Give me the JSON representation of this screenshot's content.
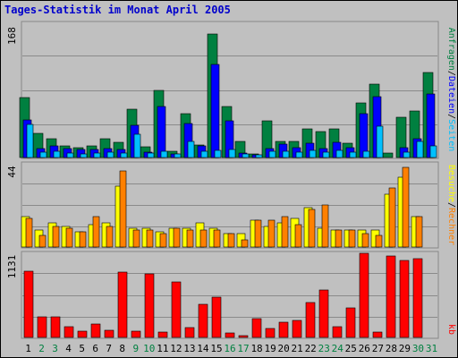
{
  "title": "Tages-Statistik im Monat April 2005",
  "colors": {
    "background": "#c0c0c0",
    "title": "#0000cc",
    "anfragen": "#008040",
    "dateien": "#0000ff",
    "seiten": "#00c0ff",
    "besuche": "#ffff00",
    "rechner": "#ff8000",
    "kb": "#ff0000",
    "weekday_label": "#000000",
    "weekend_label": "#008040"
  },
  "right_labels": {
    "top": [
      {
        "text": "Anfragen",
        "color": "#008040"
      },
      {
        "text": "/",
        "color": "#000000"
      },
      {
        "text": "Dateien",
        "color": "#0000ff"
      },
      {
        "text": "/",
        "color": "#000000"
      },
      {
        "text": "Seiten",
        "color": "#00c0ff"
      }
    ],
    "middle": [
      {
        "text": "Besuche",
        "color": "#ffff00"
      },
      {
        "text": "/",
        "color": "#000000"
      },
      {
        "text": "Rechner",
        "color": "#ff8000"
      }
    ],
    "bottom": [
      {
        "text": "kb",
        "color": "#ff0000"
      }
    ]
  },
  "chart_data": [
    {
      "type": "bar",
      "panel": "top",
      "ymax_label": "168",
      "ylim": [
        0,
        168
      ],
      "x": [
        1,
        2,
        3,
        4,
        5,
        6,
        7,
        8,
        9,
        10,
        11,
        12,
        13,
        14,
        15,
        16,
        17,
        18,
        19,
        20,
        21,
        22,
        23,
        24,
        25,
        26,
        27,
        28,
        29,
        30,
        31
      ],
      "series": [
        {
          "name": "Anfragen",
          "color": "#008040",
          "values": [
            75,
            30,
            24,
            14,
            12,
            15,
            24,
            19,
            60,
            13,
            84,
            8,
            55,
            16,
            154,
            64,
            20,
            5,
            46,
            20,
            20,
            36,
            32,
            36,
            18,
            68,
            92,
            6,
            50,
            58,
            106
          ]
        },
        {
          "name": "Dateien",
          "color": "#0000ff",
          "values": [
            47,
            11,
            14,
            11,
            10,
            10,
            11,
            10,
            40,
            7,
            64,
            5,
            43,
            14,
            117,
            46,
            6,
            3,
            11,
            17,
            12,
            18,
            11,
            19,
            12,
            55,
            76,
            0,
            12,
            23,
            80
          ]
        },
        {
          "name": "Seiten",
          "color": "#00c0ff",
          "values": [
            41,
            7,
            8,
            6,
            5,
            6,
            7,
            6,
            29,
            6,
            8,
            4,
            20,
            8,
            9,
            10,
            4,
            3,
            8,
            8,
            7,
            9,
            7,
            9,
            7,
            8,
            39,
            0,
            7,
            20,
            15
          ]
        }
      ]
    },
    {
      "type": "bar",
      "panel": "middle",
      "ymax_label": "44",
      "ylim": [
        0,
        44
      ],
      "x": [
        1,
        2,
        3,
        4,
        5,
        6,
        7,
        8,
        9,
        10,
        11,
        12,
        13,
        14,
        15,
        16,
        17,
        18,
        19,
        20,
        21,
        22,
        23,
        24,
        25,
        26,
        27,
        28,
        29,
        30,
        31
      ],
      "series": [
        {
          "name": "Besuche",
          "color": "#ffff00",
          "values": [
            16,
            9,
            13,
            11,
            8,
            12,
            13,
            32,
            10,
            10,
            8,
            10,
            10,
            13,
            10,
            7,
            7,
            14,
            11,
            13,
            15,
            21,
            10,
            9,
            9,
            9,
            9,
            28,
            37,
            16,
            0
          ]
        },
        {
          "name": "Rechner",
          "color": "#ff8000",
          "values": [
            15,
            6,
            11,
            10,
            8,
            16,
            11,
            40,
            9,
            9,
            7,
            10,
            9,
            9,
            9,
            7,
            4,
            14,
            14,
            16,
            12,
            20,
            22,
            9,
            9,
            7,
            6,
            31,
            42,
            16,
            0
          ]
        }
      ]
    },
    {
      "type": "bar",
      "panel": "bottom",
      "ymax_label": "1131",
      "ylim": [
        0,
        1131
      ],
      "x": [
        1,
        2,
        3,
        4,
        5,
        6,
        7,
        8,
        9,
        10,
        11,
        12,
        13,
        14,
        15,
        16,
        17,
        18,
        19,
        20,
        21,
        22,
        23,
        24,
        25,
        26,
        27,
        28,
        29,
        30,
        31
      ],
      "series": [
        {
          "name": "kb",
          "color": "#ff0000",
          "values": [
            890,
            280,
            280,
            150,
            80,
            180,
            100,
            880,
            90,
            860,
            70,
            740,
            130,
            440,
            540,
            60,
            20,
            250,
            120,
            200,
            230,
            470,
            640,
            140,
            400,
            1131,
            70,
            1090,
            1040,
            1060,
            0
          ]
        }
      ]
    }
  ],
  "x_labels": [
    {
      "text": "1",
      "weekend": false
    },
    {
      "text": "2",
      "weekend": true
    },
    {
      "text": "3",
      "weekend": true
    },
    {
      "text": "4",
      "weekend": false
    },
    {
      "text": "5",
      "weekend": false
    },
    {
      "text": "6",
      "weekend": false
    },
    {
      "text": "7",
      "weekend": false
    },
    {
      "text": "8",
      "weekend": false
    },
    {
      "text": "9",
      "weekend": true
    },
    {
      "text": "10",
      "weekend": true
    },
    {
      "text": "11",
      "weekend": false
    },
    {
      "text": "12",
      "weekend": false
    },
    {
      "text": "13",
      "weekend": false
    },
    {
      "text": "14",
      "weekend": false
    },
    {
      "text": "15",
      "weekend": false
    },
    {
      "text": "16",
      "weekend": true
    },
    {
      "text": "17",
      "weekend": true
    },
    {
      "text": "18",
      "weekend": false
    },
    {
      "text": "19",
      "weekend": false
    },
    {
      "text": "20",
      "weekend": false
    },
    {
      "text": "21",
      "weekend": false
    },
    {
      "text": "22",
      "weekend": false
    },
    {
      "text": "23",
      "weekend": true
    },
    {
      "text": "24",
      "weekend": true
    },
    {
      "text": "25",
      "weekend": false
    },
    {
      "text": "26",
      "weekend": false
    },
    {
      "text": "27",
      "weekend": false
    },
    {
      "text": "28",
      "weekend": false
    },
    {
      "text": "29",
      "weekend": false
    },
    {
      "text": "30",
      "weekend": true
    },
    {
      "text": "31",
      "weekend": true
    }
  ]
}
